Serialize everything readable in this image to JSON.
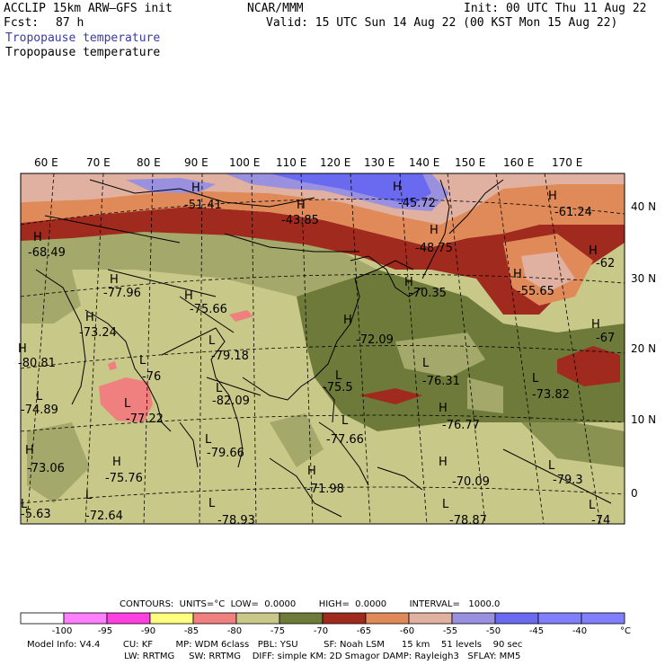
{
  "header": {
    "model": "ACCLIP 15km ARW–GFS init",
    "center": "NCAR/MMM",
    "init": "Init: 00 UTC Thu 11 Aug 22",
    "fcst_label": "Fcst:",
    "fcst_value": "87 h",
    "valid": "Valid: 15 UTC Sun 14 Aug 22 (00 KST Mon 15 Aug 22)",
    "field_title_1": "Tropopause temperature",
    "field_title_2": "Tropopause temperature"
  },
  "map": {
    "lon_labels": [
      "60 E",
      "70 E",
      "80 E",
      "90 E",
      "100 E",
      "110 E",
      "120 E",
      "130 E",
      "140 E",
      "150 E",
      "160 E",
      "170 E"
    ],
    "lat_labels": [
      "40 N",
      "30 N",
      "20 N",
      "10 N",
      "0"
    ],
    "extrema": [
      {
        "mark": "H",
        "value": "-51.41"
      },
      {
        "mark": "H",
        "value": "-43.85"
      },
      {
        "mark": "H",
        "value": "-45.72"
      },
      {
        "mark": "H",
        "value": "-61.24"
      },
      {
        "mark": "H",
        "value": "-68.49"
      },
      {
        "mark": "H",
        "value": "-48.75"
      },
      {
        "mark": "H",
        "value": "-62"
      },
      {
        "mark": "H",
        "value": "-77.96"
      },
      {
        "mark": "H",
        "value": "-75.66"
      },
      {
        "mark": "H",
        "value": "-70.35"
      },
      {
        "mark": "H",
        "value": "-55.65"
      },
      {
        "mark": "H",
        "value": "-73.24"
      },
      {
        "mark": "H",
        "value": "-72.09"
      },
      {
        "mark": "H",
        "value": "-67"
      },
      {
        "mark": "L",
        "value": "-79.18"
      },
      {
        "mark": "H",
        "value": "-80.81"
      },
      {
        "mark": "L",
        "value": "-76"
      },
      {
        "mark": "L",
        "value": "-75.5"
      },
      {
        "mark": "L",
        "value": "-76.31"
      },
      {
        "mark": "L",
        "value": "-73.82"
      },
      {
        "mark": "L",
        "value": "-74.89"
      },
      {
        "mark": "L",
        "value": "-82.09"
      },
      {
        "mark": "L",
        "value": "-77.22"
      },
      {
        "mark": "H",
        "value": "-76.77"
      },
      {
        "mark": "L",
        "value": "-77.66"
      },
      {
        "mark": "H",
        "value": "-73.06"
      },
      {
        "mark": "L",
        "value": "-79.66"
      },
      {
        "mark": "H",
        "value": "-75.76"
      },
      {
        "mark": "H",
        "value": "-70.09"
      },
      {
        "mark": "L",
        "value": "-79.3"
      },
      {
        "mark": "H",
        "value": "-71.98"
      },
      {
        "mark": "L",
        "value": "-72.64"
      },
      {
        "mark": "L",
        "value": "-5.63"
      },
      {
        "mark": "L",
        "value": "-78.93"
      },
      {
        "mark": "L",
        "value": "-78.87"
      },
      {
        "mark": "L",
        "value": "-74"
      }
    ]
  },
  "colorbar": {
    "contours_line": "CONTOURS:  UNITS=°C  LOW=  0.0000        HIGH=  0.0000        INTERVAL=   1000.0",
    "ticks": [
      "-100",
      "-95",
      "-90",
      "-85",
      "-80",
      "-75",
      "-70",
      "-65",
      "-60",
      "-55",
      "-50",
      "-45",
      "-40"
    ],
    "unit": "°C",
    "colors": [
      "#ffffff",
      "#ff80ff",
      "#ff40e0",
      "#ffff80",
      "#f08080",
      "#c8c888",
      "#6e7a3a",
      "#a02a1e",
      "#e08a5a",
      "#e0b0a0",
      "#9a90e0",
      "#6a6af0",
      "#8080ff"
    ]
  },
  "model_info": {
    "line1": "Model Info: V4.4        CU: KF        MP: WDM 6class   PBL: YSU         SF: Noah LSM      15 km    51 levels    90 sec",
    "line2": "                                  LW: RRTMG     SW: RRTMG    DIFF: simple KM: 2D Smagor DAMP: Rayleigh3   SFLAY: MM5"
  }
}
